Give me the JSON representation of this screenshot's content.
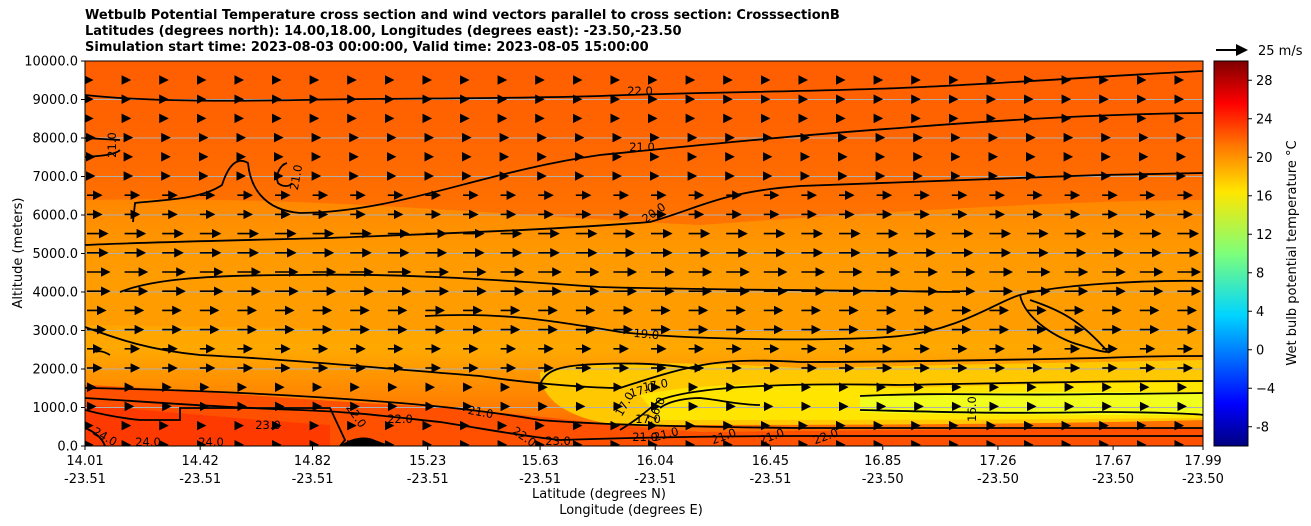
{
  "chart_data": {
    "type": "contour",
    "title_lines": [
      "Wetbulb Potential Temperature cross section and wind vectors parallel to cross section: CrosssectionB",
      "Latitudes (degrees north): 14.00,18.00, Longitudes (degrees east): -23.50,-23.50",
      "Simulation start time: 2023-08-03 00:00:00, Valid time: 2023-08-05 15:00:00"
    ],
    "ylabel": "Altitude (meters)",
    "xlabel_lat": "Latitude (degrees N)",
    "xlabel_lon": "Longitude (degrees E)",
    "ylim": [
      0,
      10000
    ],
    "yticks": [
      "0.0",
      "1000.0",
      "2000.0",
      "3000.0",
      "4000.0",
      "5000.0",
      "6000.0",
      "7000.0",
      "8000.0",
      "9000.0",
      "10000.0"
    ],
    "xticks": [
      {
        "lat": "14.01",
        "lon": "-23.51"
      },
      {
        "lat": "14.42",
        "lon": "-23.51"
      },
      {
        "lat": "14.82",
        "lon": "-23.51"
      },
      {
        "lat": "15.23",
        "lon": "-23.51"
      },
      {
        "lat": "15.63",
        "lon": "-23.51"
      },
      {
        "lat": "16.04",
        "lon": "-23.51"
      },
      {
        "lat": "16.45",
        "lon": "-23.51"
      },
      {
        "lat": "16.85",
        "lon": "-23.50"
      },
      {
        "lat": "17.26",
        "lon": "-23.50"
      },
      {
        "lat": "17.67",
        "lon": "-23.50"
      },
      {
        "lat": "17.99",
        "lon": "-23.50"
      }
    ],
    "colorbar": {
      "label": "Wet bulb potential temperature °C",
      "ticks": [
        "-8",
        "−4",
        "0",
        "4",
        "8",
        "12",
        "16",
        "20",
        "24",
        "28"
      ],
      "range": [
        -10,
        30
      ]
    },
    "quiver_key": "25 m/s",
    "contour_labels": [
      "22.0",
      "21.0",
      "21.0",
      "21.0",
      "20.0",
      "19.0",
      "17.0",
      "17.0",
      "17.0",
      "16.0",
      "16.0",
      "17.0",
      "21.0",
      "21.0",
      "21.0",
      "21.0",
      "21.0",
      "22.0",
      "22.0",
      "22.0",
      "23.0",
      "23.0",
      "22.0",
      "24.0",
      "24.0",
      "24.0"
    ],
    "colors": {
      "axis": "#000000",
      "grid": "#b0b0b0"
    }
  }
}
